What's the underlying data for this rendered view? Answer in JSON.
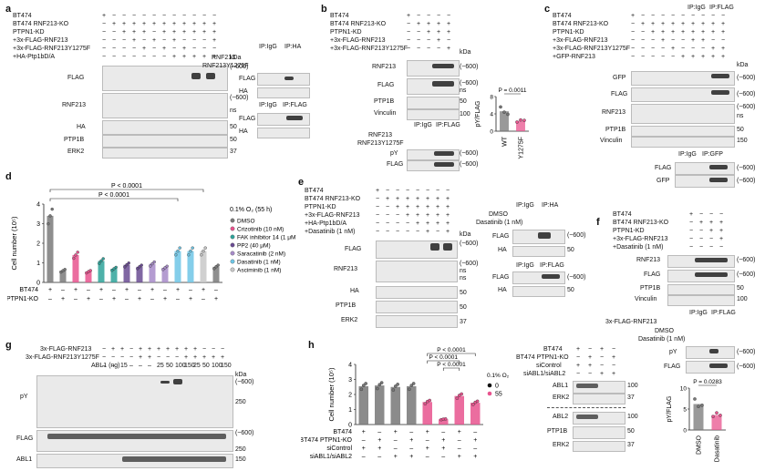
{
  "panel_letters": [
    "a",
    "b",
    "c",
    "d",
    "e",
    "f",
    "g",
    "h"
  ],
  "marks": {
    "plus": "+",
    "minus": "−"
  },
  "panel_a": {
    "row_labels": [
      "BT474",
      "BT474 RNF213-KO",
      "PTPN1-KD",
      "+3x-FLAG-RNF213",
      "+3x-FLAG-RNF213Y1275F",
      "+HA-Ptp1bD/A"
    ],
    "blot_labels": [
      "FLAG",
      "RNF213",
      "HA",
      "PTP1B",
      "ERK2"
    ],
    "mw": [
      "kDa",
      "(~600)",
      "(~600)",
      "ns",
      "50",
      "50",
      "37"
    ],
    "ip": {
      "labels": [
        "IP:IgG",
        "IP:HA",
        "IP:IgG",
        "IP:FLAG"
      ],
      "rows": [
        "RNF213",
        "RNF213Y1275F"
      ],
      "blots": [
        "FLAG",
        "HA",
        "FLAG",
        "HA"
      ],
      "mw": [
        "kDa",
        "(~600)",
        "50",
        "(~600)",
        "50"
      ]
    }
  },
  "panel_b": {
    "row_labels": [
      "BT474",
      "BT474 RNF213-KO",
      "PTPN1-KD",
      "+3x-FLAG-RNF213",
      "+3x-FLAG-RNF213Y1275F"
    ],
    "blot_labels": [
      "RNF213",
      "FLAG",
      "PTP1B",
      "Vinculin"
    ],
    "mw": [
      "kDa",
      "(~600)",
      "(~600)",
      "ns",
      "50",
      "100"
    ],
    "ip": {
      "labels": [
        "IP:IgG",
        "IP:FLAG"
      ],
      "rows": [
        "RNF213",
        "RNF213Y1275F"
      ],
      "blots": [
        "pY",
        "FLAG"
      ],
      "mw": [
        "(~600)",
        "(~600)"
      ]
    }
  },
  "panel_c": {
    "row_labels": [
      "BT474",
      "BT474 RNF213-KO",
      "PTPN1-KD",
      "+3x-FLAG-RNF213",
      "+3x-FLAG-RNF213Y1275F",
      "+GFP-RNF213"
    ],
    "ip_labels": [
      "IP:IgG",
      "IP:FLAG",
      "IP:IgG",
      "IP:GFP"
    ],
    "blot_labels": [
      "GFP",
      "FLAG",
      "RNF213",
      "PTP1B",
      "Vinculin",
      "FLAG",
      "GFP"
    ],
    "mw": [
      "kDa",
      "(~600)",
      "(~600)",
      "(~600)",
      "ns",
      "50",
      "150",
      "(~600)",
      "(~600)"
    ]
  },
  "panel_e": {
    "row_labels": [
      "BT474",
      "BT474 RNF213-KO",
      "PTPN1-KD",
      "+3x-FLAG-RNF213",
      "+HA-Ptp1bD/A",
      "+Dasatinib (1 nM)"
    ],
    "blot_labels": [
      "FLAG",
      "RNF213",
      "HA",
      "PTP1B",
      "ERK2"
    ],
    "mw": [
      "kDa",
      "(~600)",
      "(~600)",
      "ns",
      "ns",
      "50",
      "50",
      "37"
    ],
    "ip": {
      "rows": [
        "DMSO",
        "Dasatinib (1 nM)"
      ],
      "labels": [
        "IP:IgG",
        "IP:HA",
        "IP:IgG",
        "IP:FLAG"
      ],
      "blots": [
        "FLAG",
        "HA",
        "FLAG",
        "HA"
      ],
      "mw": [
        "(~600)",
        "50",
        "(~600)",
        "50"
      ]
    }
  },
  "panel_f": {
    "row_labels": [
      "BT474",
      "BT474 RNF213-KO",
      "PTPN1-KD",
      "+3x-FLAG-RNF213",
      "+Dasatinib (1 nM)"
    ],
    "blot_labels": [
      "RNF213",
      "FLAG",
      "PTP1B",
      "Vinculin"
    ],
    "mw": [
      "(~600)",
      "(~600)",
      "50",
      "100"
    ],
    "ip": {
      "rows": [
        "3x-FLAG-RNF213",
        "DMSO",
        "Dasatinib (1 nM)"
      ],
      "labels": [
        "IP:IgG",
        "IP:FLAG"
      ],
      "blots": [
        "pY",
        "FLAG"
      ],
      "mw": [
        "(~600)",
        "(~600)"
      ]
    }
  },
  "panel_g": {
    "row_labels": [
      "3x-FLAG-RNF213",
      "3x-FLAG-RNF213Y1275F",
      "ABL1 (ng)"
    ],
    "abl1_ng": [
      "–",
      "–",
      "15",
      "–",
      "–",
      "–",
      "25",
      "50",
      "100",
      "150",
      "25",
      "50",
      "100",
      "150"
    ],
    "blot_labels": [
      "pY",
      "FLAG",
      "ABL1"
    ],
    "mw": [
      "kDa",
      "(~600)",
      "250",
      "(~600)",
      "250",
      "150"
    ]
  },
  "panel_h": {
    "row_labels": [
      "BT474",
      "BT474 PTPN1-KO",
      "siControl",
      "siABL1/siABL2"
    ],
    "blot_row_labels": [
      "BT474",
      "BT474 PTPN1-KO",
      "siControl",
      "siABL1/siABL2"
    ],
    "blot_labels": [
      "ABL1",
      "ERK2",
      "ABL2",
      "PTP1B",
      "ERK2"
    ],
    "mw": [
      "100",
      "37",
      "100",
      "50",
      "37"
    ]
  },
  "chart_data": [
    {
      "type": "bar",
      "panel": "b",
      "ylabel": "pY/FLAG",
      "categories": [
        "WT",
        "Y1275F"
      ],
      "values": [
        4.6,
        2.4
      ],
      "points": [
        [
          5.6,
          4.4,
          3.9
        ],
        [
          2.1,
          2.6,
          2.5
        ]
      ],
      "ylim": [
        0,
        8
      ],
      "yticks": [
        0,
        4,
        8
      ],
      "annotation": "P = 0.0011",
      "colors": [
        "#777777",
        "#e8538e"
      ]
    },
    {
      "type": "bar",
      "panel": "d",
      "ylabel": "Cell number (10⁵)",
      "ylim": [
        0,
        4
      ],
      "yticks": [
        0,
        1,
        2,
        3,
        4
      ],
      "condition_note": "0.1% O₂ (55 h)",
      "legend": [
        "DMSO",
        "Crizotinib (10 nM)",
        "FAK inhibitor 14 (1 μM)",
        "PP2 (40 μM)",
        "Saracatinib (2 nM)",
        "Dasatinib (1 nM)",
        "Asciminib (1 nM)"
      ],
      "legend_colors": [
        "#7a7a7a",
        "#e8538e",
        "#2fa39a",
        "#6a4c93",
        "#a78bc9",
        "#6ec6e6",
        "#c8c8c8"
      ],
      "bt474": [
        "+",
        "–",
        "+",
        "–",
        "+",
        "–",
        "+",
        "–",
        "+",
        "–",
        "+",
        "–",
        "+",
        "–"
      ],
      "ko": [
        "–",
        "+",
        "–",
        "+",
        "–",
        "+",
        "–",
        "+",
        "–",
        "+",
        "–",
        "+",
        "–",
        "+"
      ],
      "values": [
        3.4,
        0.6,
        1.4,
        0.55,
        1.1,
        0.7,
        0.9,
        0.8,
        0.95,
        0.75,
        1.6,
        1.6,
        1.6,
        0.8
      ],
      "bar_colors": [
        "#7a7a7a",
        "#7a7a7a",
        "#e8538e",
        "#e8538e",
        "#2fa39a",
        "#2fa39a",
        "#6a4c93",
        "#6a4c93",
        "#a78bc9",
        "#a78bc9",
        "#6ec6e6",
        "#6ec6e6",
        "#c8c8c8",
        "#7a7a7a"
      ],
      "annotations": [
        "P < 0.0001",
        "P < 0.0001"
      ]
    },
    {
      "type": "bar",
      "panel": "f",
      "ylabel": "pY/FLAG",
      "categories": [
        "DMSO",
        "Dasatinib"
      ],
      "values": [
        6.2,
        3.6
      ],
      "points": [
        [
          7.4,
          5.6,
          5.9
        ],
        [
          3.2,
          4.1,
          3.5
        ]
      ],
      "ylim": [
        0,
        10
      ],
      "yticks": [
        0,
        5,
        10
      ],
      "annotation": "P = 0.0283",
      "colors": [
        "#777777",
        "#e8538e"
      ]
    },
    {
      "type": "bar",
      "panel": "h",
      "ylabel": "Cell number (10⁵)",
      "ylim": [
        0,
        4
      ],
      "yticks": [
        0,
        1,
        2,
        3,
        4
      ],
      "legend_title": "0.1% O₂ (h)",
      "legend": [
        "0",
        "55"
      ],
      "legend_colors": [
        "#111111",
        "#e8538e"
      ],
      "values": [
        2.55,
        2.6,
        2.5,
        2.55,
        1.5,
        0.35,
        1.9,
        1.45
      ],
      "bar_colors": [
        "#777777",
        "#777777",
        "#777777",
        "#777777",
        "#e8538e",
        "#e8538e",
        "#e8538e",
        "#e8538e"
      ],
      "bt474": [
        "+",
        "–",
        "+",
        "–",
        "+",
        "–",
        "+",
        "–"
      ],
      "ko": [
        "–",
        "+",
        "–",
        "+",
        "–",
        "+",
        "–",
        "+"
      ],
      "sicontrol": [
        "+",
        "+",
        "–",
        "–",
        "+",
        "+",
        "–",
        "–"
      ],
      "siabl": [
        "–",
        "–",
        "+",
        "+",
        "–",
        "–",
        "+",
        "+"
      ],
      "annotations": [
        "P < 0.0001",
        "P < 0.0001",
        "P < 0.0001"
      ]
    }
  ]
}
